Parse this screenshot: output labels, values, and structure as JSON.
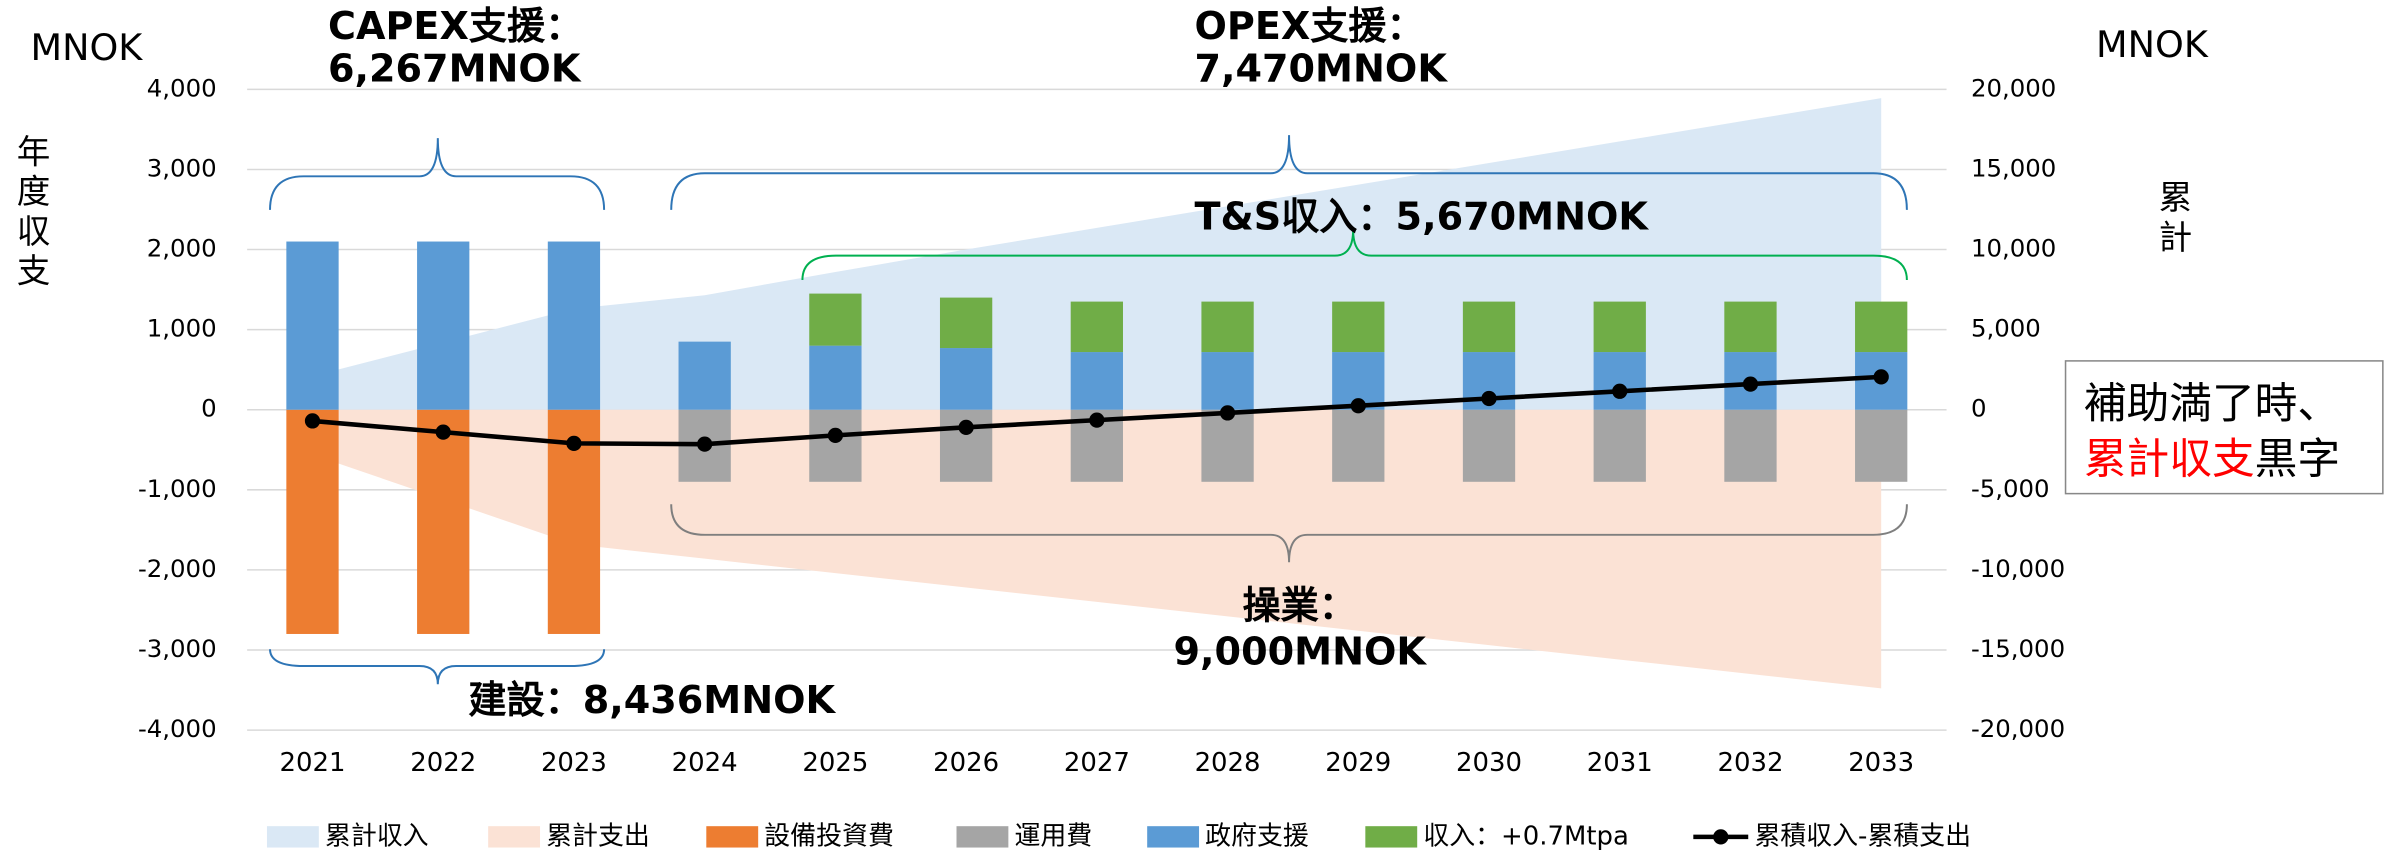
{
  "chart_data": {
    "type": "bar",
    "categories": [
      "2021",
      "2022",
      "2023",
      "2024",
      "2025",
      "2026",
      "2027",
      "2028",
      "2029",
      "2030",
      "2031",
      "2032",
      "2033"
    ],
    "y_label_left_unit": "MNOK",
    "y_label_left": "年度収支",
    "y_label_right_unit": "MNOK",
    "y_label_right": "累計",
    "ylim": [
      -4000,
      4000
    ],
    "yticks": [
      {
        "value": 4000,
        "label": "4,000"
      },
      {
        "value": 3000,
        "label": "3,000"
      },
      {
        "value": 2000,
        "label": "2,000"
      },
      {
        "value": 1000,
        "label": "1,000"
      },
      0,
      {
        "value": -1000,
        "label": "-1,000"
      },
      {
        "value": -2000,
        "label": "-2,000"
      },
      {
        "value": -3000,
        "label": "-3,000"
      },
      {
        "value": -4000,
        "label": "-4,000"
      }
    ],
    "y2lim": [
      -20000,
      20000
    ],
    "y2ticks": [
      {
        "value": 20000,
        "label": "20,000"
      },
      {
        "value": 15000,
        "label": "15,000"
      },
      {
        "value": 10000,
        "label": "10,000"
      },
      {
        "value": 5000,
        "label": "5,000"
      },
      0,
      {
        "value": -5000,
        "label": "-5,000"
      },
      {
        "value": -10000,
        "label": "-10,000"
      },
      {
        "value": -15000,
        "label": "-15,000"
      },
      {
        "value": -20000,
        "label": "-20,000"
      }
    ],
    "grid": true,
    "series": [
      {
        "name": "累計収入",
        "kind": "area",
        "axis": "y2",
        "color": "#dae8f5",
        "values": [
          2100,
          4200,
          6300,
          7150,
          8600,
          10000,
          11350,
          12700,
          14050,
          15400,
          16750,
          18100,
          19450
        ]
      },
      {
        "name": "累計支出",
        "kind": "area",
        "axis": "y2",
        "color": "#fbe2d5",
        "values": [
          -2800,
          -5600,
          -8400,
          -9300,
          -10200,
          -11100,
          -12000,
          -12900,
          -13800,
          -14700,
          -15600,
          -16500,
          -17400
        ]
      },
      {
        "name": "設備投資費",
        "kind": "bar",
        "color": "#ed7d31",
        "values": [
          -2800,
          -2800,
          -2800,
          null,
          null,
          null,
          null,
          null,
          null,
          null,
          null,
          null,
          null
        ]
      },
      {
        "name": "運用費",
        "kind": "bar",
        "color": "#a5a5a5",
        "values": [
          null,
          null,
          null,
          -900,
          -900,
          -900,
          -900,
          -900,
          -900,
          -900,
          -900,
          -900,
          -900
        ]
      },
      {
        "name": "政府支援",
        "kind": "bar",
        "color": "#5b9bd5",
        "values": [
          2100,
          2100,
          2100,
          850,
          800,
          770,
          720,
          720,
          720,
          720,
          720,
          720,
          720
        ]
      },
      {
        "name": "収入：+0.7Mtpa",
        "kind": "bar",
        "color": "#70ad47",
        "values": [
          null,
          null,
          null,
          null,
          650,
          630,
          630,
          630,
          630,
          630,
          630,
          630,
          630
        ]
      },
      {
        "name": "累積収入-累積支出",
        "kind": "line",
        "axis": "y2",
        "color": "#000000",
        "values": [
          -700,
          -1400,
          -2100,
          -2150,
          -1600,
          -1100,
          -650,
          -200,
          250,
          700,
          1150,
          1600,
          2050
        ]
      }
    ],
    "annotations": {
      "capex": [
        "CAPEX支援：",
        "6,267MNOK"
      ],
      "opex": [
        "OPEX支援：",
        "7,470MNOK"
      ],
      "ts_income": "T&S収入：5,670MNOK",
      "operation": [
        "操業：",
        "9,000MNOK"
      ],
      "construction": "建設：8,436MNOK",
      "callout": [
        "補助満了時、",
        "累計収支",
        "黒字"
      ]
    }
  }
}
